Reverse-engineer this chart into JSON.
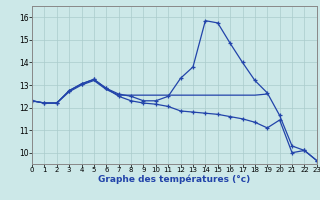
{
  "xlabel": "Graphe des températures (°c)",
  "bg_color": "#cce8e8",
  "grid_color": "#aacccc",
  "line_color": "#2244aa",
  "xlim": [
    0,
    23
  ],
  "ylim": [
    9.5,
    16.5
  ],
  "yticks": [
    10,
    11,
    12,
    13,
    14,
    15,
    16
  ],
  "xticks": [
    0,
    1,
    2,
    3,
    4,
    5,
    6,
    7,
    8,
    9,
    10,
    11,
    12,
    13,
    14,
    15,
    16,
    17,
    18,
    19,
    20,
    21,
    22,
    23
  ],
  "series1_x": [
    0,
    1,
    2,
    3,
    4,
    5,
    6,
    7,
    8,
    9,
    10,
    11,
    12,
    13,
    14,
    15,
    16,
    17,
    18,
    19,
    20,
    21,
    22,
    23
  ],
  "series1_y": [
    12.3,
    12.2,
    12.2,
    12.75,
    13.05,
    13.25,
    12.85,
    12.6,
    12.5,
    12.3,
    12.3,
    12.5,
    13.3,
    13.8,
    15.85,
    15.75,
    14.85,
    14.0,
    13.2,
    12.65,
    11.65,
    10.3,
    10.1,
    9.65
  ],
  "series2_x": [
    0,
    1,
    2,
    3,
    4,
    5,
    6,
    7,
    8,
    9,
    10,
    11,
    12,
    13,
    14,
    15,
    16,
    17,
    18,
    19,
    20,
    21,
    22,
    23
  ],
  "series2_y": [
    12.3,
    12.2,
    12.2,
    12.75,
    13.05,
    13.25,
    12.85,
    12.5,
    12.3,
    12.2,
    12.15,
    12.05,
    11.85,
    11.8,
    11.75,
    11.7,
    11.6,
    11.5,
    11.35,
    11.1,
    11.45,
    10.0,
    10.1,
    9.65
  ],
  "series3_x": [
    0,
    1,
    2,
    3,
    4,
    5,
    6,
    7,
    8,
    9,
    10,
    11,
    12,
    13,
    14,
    15,
    16,
    17,
    18,
    19
  ],
  "series3_y": [
    12.3,
    12.2,
    12.2,
    12.7,
    13.0,
    13.2,
    12.8,
    12.55,
    12.55,
    12.55,
    12.55,
    12.55,
    12.55,
    12.55,
    12.55,
    12.55,
    12.55,
    12.55,
    12.55,
    12.6
  ]
}
